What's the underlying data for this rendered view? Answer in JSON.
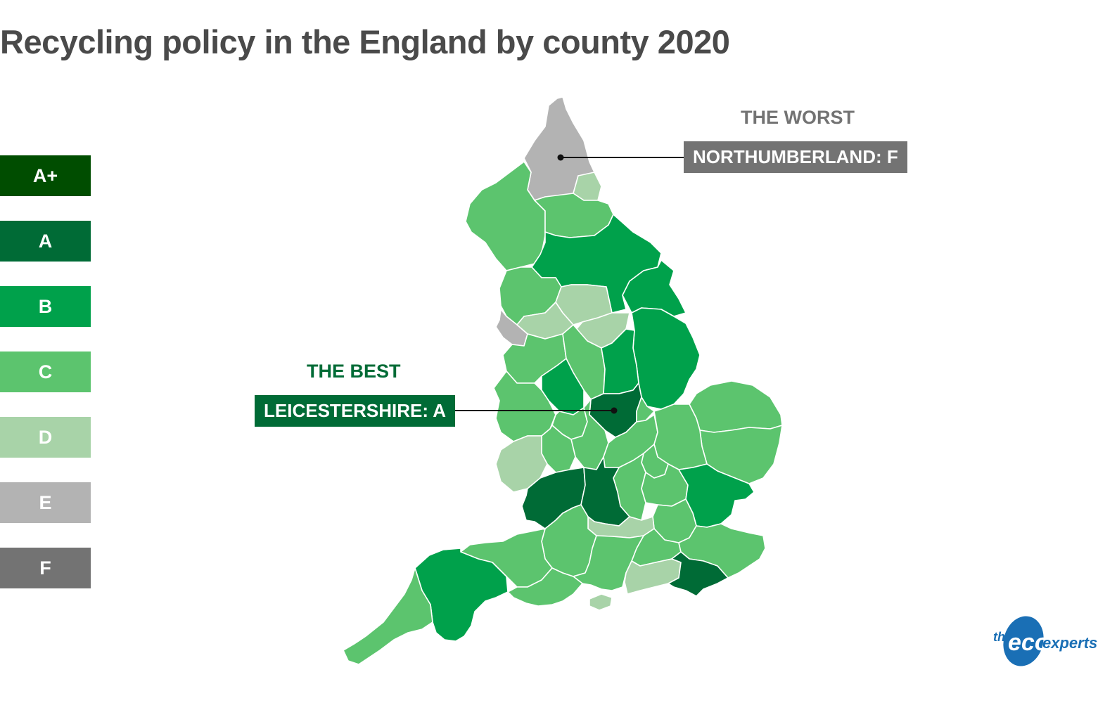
{
  "title": "Recycling policy in the England by county 2020",
  "legend": [
    {
      "label": "A+",
      "color": "#004d00"
    },
    {
      "label": "A",
      "color": "#006b36"
    },
    {
      "label": "B",
      "color": "#00a14b"
    },
    {
      "label": "C",
      "color": "#5cc46e"
    },
    {
      "label": "D",
      "color": "#a8d3a8"
    },
    {
      "label": "E",
      "color": "#b3b3b3"
    },
    {
      "label": "F",
      "color": "#737373"
    }
  ],
  "callouts": {
    "worst": {
      "heading": "THE WORST",
      "label": "NORTHUMBERLAND: F",
      "color": "#737373"
    },
    "best": {
      "heading": "THE BEST",
      "label": "LEICESTERSHIRE: A",
      "color": "#006b36"
    }
  },
  "logo": {
    "the": "the",
    "eco": "eco",
    "experts": "experts",
    "color": "#1a6fb5"
  }
}
